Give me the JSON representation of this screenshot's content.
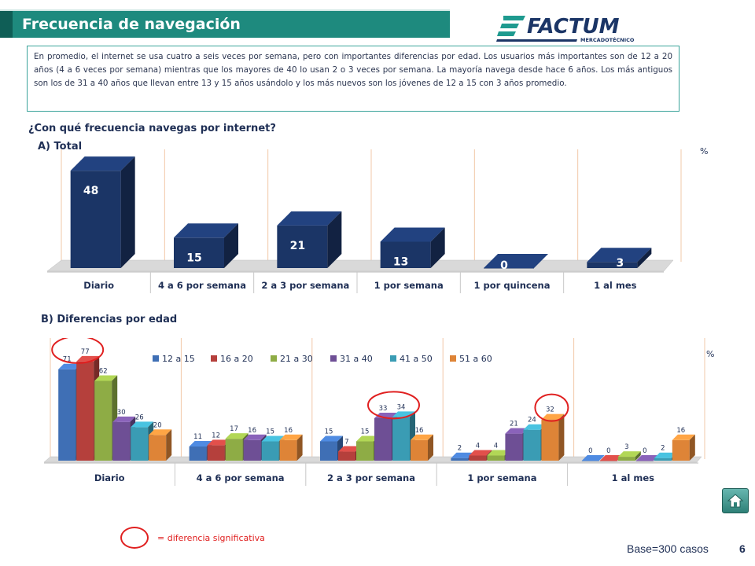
{
  "header": {
    "title": "Frecuencia de navegación"
  },
  "logo": {
    "name": "FACTUM",
    "sub": "MERCADOTÉCNICO"
  },
  "intro": {
    "text": "En promedio, el internet se usa cuatro a seis veces por semana, pero con importantes diferencias por edad. Los usuarios más importantes son de 12 a 20 años (4 a 6 veces por semana) mientras que los mayores de 40 lo usan 2 o 3 veces por semana. La mayoría navega desde hace 6 años. Los más antiguos son los de 31 a 40 años que llevan entre 13 y 15 años usándolo y los más nuevos son los jóvenes de 12 a 15 con 3 años promedio."
  },
  "question": "¿Con qué frecuencia navegas por internet?",
  "section_a": "A) Total",
  "section_b": "B) Diferencias por edad",
  "unit_a": "%",
  "unit_b": "%",
  "legend_note": "= diferencia significativa",
  "footer": {
    "base": "Base=300 casos",
    "page": "6"
  },
  "colors": {
    "title_bar": "#1e8a7e",
    "bar_total": "#1b3566",
    "highlight": "#e02020"
  },
  "chart_data": [
    {
      "type": "bar",
      "title": "A) Total",
      "categories": [
        "Diario",
        "4 a 6 por semana",
        "2 a 3 por semana",
        "1 por semana",
        "1 por quincena",
        "1 al mes"
      ],
      "values": [
        48,
        15,
        21,
        13,
        0,
        3
      ],
      "ylim": [
        0,
        50
      ],
      "ylabel": "%"
    },
    {
      "type": "bar",
      "title": "B) Diferencias por edad",
      "categories": [
        "Diario",
        "4 a 6 por semana",
        "2 a 3 por semana",
        "1 por semana",
        "1 al mes"
      ],
      "series": [
        {
          "name": "12 a 15",
          "color": "#3f6fb5",
          "values": [
            71,
            11,
            15,
            2,
            0
          ]
        },
        {
          "name": "16 a 20",
          "color": "#b5403c",
          "values": [
            77,
            12,
            7,
            4,
            0
          ]
        },
        {
          "name": "21 a 30",
          "color": "#8eac45",
          "values": [
            62,
            17,
            15,
            4,
            3
          ]
        },
        {
          "name": "31 a 40",
          "color": "#6e4f95",
          "values": [
            30,
            16,
            33,
            21,
            0
          ]
        },
        {
          "name": "41 a 50",
          "color": "#3a9cb4",
          "values": [
            26,
            15,
            34,
            24,
            2
          ]
        },
        {
          "name": "51 a 60",
          "color": "#de8437",
          "values": [
            20,
            16,
            16,
            32,
            16
          ]
        }
      ],
      "ylim": [
        0,
        80
      ],
      "ylabel": "%",
      "legend": "top",
      "significant": [
        {
          "category": 0,
          "series": [
            0,
            1
          ]
        },
        {
          "category": 2,
          "series": [
            3,
            4
          ]
        },
        {
          "category": 3,
          "series": [
            5
          ]
        }
      ]
    }
  ]
}
